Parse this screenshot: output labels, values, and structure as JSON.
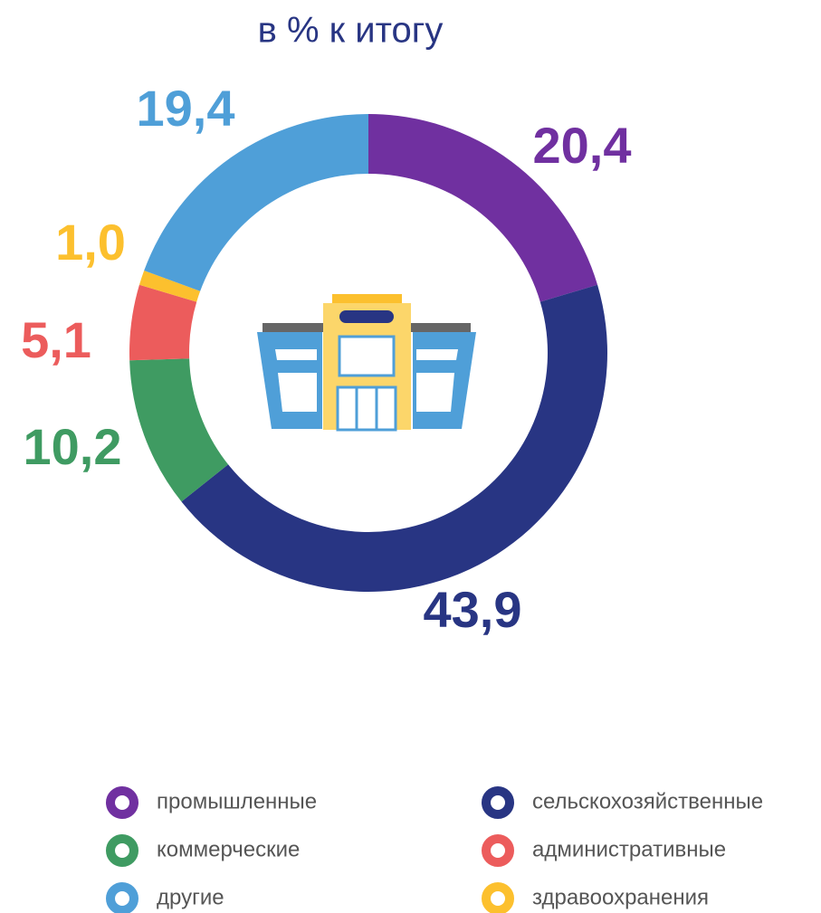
{
  "chart_data": {
    "type": "donut",
    "title": "в % к итогу",
    "categories": [
      "промышленные",
      "сельскохозяйственные",
      "коммерческие",
      "административные",
      "здравоохранения",
      "другие"
    ],
    "values": [
      20.4,
      43.9,
      10.2,
      5.1,
      1.0,
      19.4
    ],
    "value_labels": [
      "20,4",
      "43,9",
      "10,2",
      "5,1",
      "1,0",
      "19,4"
    ],
    "colors": [
      "#7030a0",
      "#283583",
      "#3f9b62",
      "#ec5c5c",
      "#fcc02e",
      "#4f9fd8"
    ]
  }
}
